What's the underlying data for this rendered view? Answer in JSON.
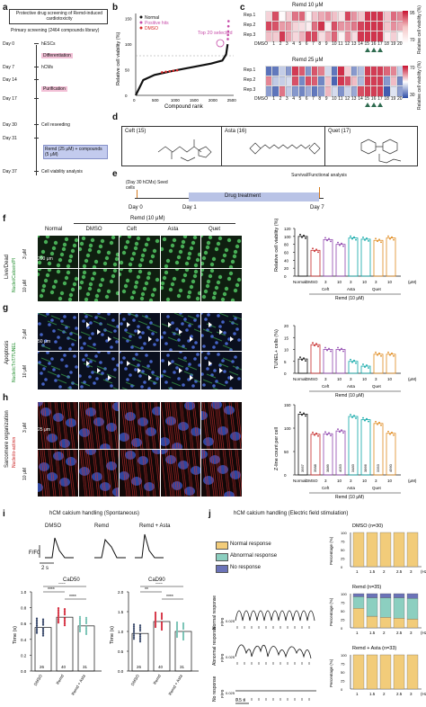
{
  "panels": {
    "a": {
      "label": "a",
      "title": "Protective drug screening of Remd-induced cardiotoxicity",
      "subtitle": "Primary screening (2464 compounds library)",
      "steps": [
        {
          "day": "Day 0",
          "text": "hESCs"
        },
        {
          "day": "",
          "text": "Differentiation"
        },
        {
          "day": "Day 7",
          "text": "hCMs"
        },
        {
          "day": "Day 14",
          "text": ""
        },
        {
          "day": "",
          "text": "Purification"
        },
        {
          "day": "Day 17",
          "text": ""
        },
        {
          "day": "Day 30",
          "text": "Cell reseeding"
        },
        {
          "day": "Day 31",
          "text": ""
        },
        {
          "day": "",
          "text": "Remd (25 μM) + compounds (5 μM)"
        },
        {
          "day": "Day 37",
          "text": "Cell viability analysis"
        }
      ]
    },
    "b": {
      "label": "b",
      "legend": [
        "Normal",
        "Positive hits",
        "DMSO"
      ],
      "annotation": "Top 20 selected",
      "xlabel": "Compound rank",
      "ylabel": "Relative cell viability (%)",
      "xticks": [
        "0",
        "500",
        "1000",
        "1500",
        "2000",
        "2500"
      ],
      "yticks": [
        "0",
        "50",
        "100",
        "150"
      ]
    },
    "c": {
      "label": "c",
      "heat1_title": "Remd 10 μM",
      "heat2_title": "Remd 25 μM",
      "rows": [
        "Rep.1",
        "Rep.2",
        "Rep.3"
      ],
      "cols": [
        "DMSO",
        "1",
        "2",
        "3",
        "4",
        "5",
        "6",
        "7",
        "8",
        "9",
        "10",
        "11",
        "12",
        "13",
        "14",
        "15",
        "16",
        "17",
        "18",
        "19",
        "20"
      ],
      "cb1": [
        "95",
        "70"
      ],
      "cb2": [
        "70",
        "30"
      ],
      "cb_label": "Relative cell viability (%)"
    },
    "d": {
      "label": "d",
      "compounds": [
        "Ceft (15)",
        "Asta (16)",
        "Quet (17)"
      ]
    },
    "e": {
      "label": "e",
      "seed": "(Day 30 hCMs) Seed cells",
      "treat": "Drug treatment",
      "analysis": "Survival/Functional analysis",
      "days": [
        "Day 0",
        "Day 1",
        "Day 7"
      ]
    },
    "f": {
      "label": "f",
      "side": "Live/Dead",
      "stain": "Nuclei/Calcein/PI",
      "scale": "200 μm",
      "col_headers": [
        "Normal",
        "DMSO",
        "Ceft",
        "Asta",
        "Quet"
      ],
      "remd": "Remd (10 μM)",
      "rows": [
        "3 μM",
        "10 μM"
      ],
      "ylabel": "Relative cell viability (%)",
      "yticks": [
        "0",
        "20",
        "40",
        "60",
        "80",
        "100",
        "120"
      ],
      "xgroup": "Remd (10 μM)"
    },
    "g": {
      "label": "g",
      "side": "Apoptosis",
      "stain": "Nuclei/cTnT/TUNEL",
      "scale": "50 μm",
      "rows": [
        "3 μM",
        "10 μM"
      ],
      "ylabel": "TUNEL+ cells (%)",
      "yticks": [
        "0",
        "5",
        "10",
        "15",
        "20"
      ],
      "xgroup": "Remd (10 μM)"
    },
    "h": {
      "label": "h",
      "side": "Sarcomere organization",
      "stain": "Nuclei/α-actinin",
      "scale": "25 μm",
      "rows": [
        "3 μM",
        "10 μM"
      ],
      "ylabel": "Z-line count per cell",
      "yticks": [
        "0",
        "50",
        "100",
        "150"
      ],
      "bar_n": [
        "3957",
        "3988",
        "3889",
        "4053",
        "3483",
        "3866",
        "3353",
        "4560"
      ],
      "xgroup": "Remd (10 μM)"
    },
    "i": {
      "label": "i",
      "title": "hCM calcium handling (Spontaneous)",
      "trace_labels": [
        "DMSO",
        "Remd",
        "Remd + Asta"
      ],
      "ylab": "F/F0",
      "scale": "2 s",
      "cad50": {
        "title": "CaD50",
        "ylabel": "Time (s)",
        "n": [
          "26",
          "40",
          "31"
        ],
        "cats": [
          "DMSO",
          "Remd",
          "Remd + Asta"
        ],
        "sig": [
          "****",
          "****",
          "****"
        ],
        "yticks": [
          "0.0",
          "0.2",
          "0.4",
          "0.6",
          "0.8",
          "1.0"
        ]
      },
      "cad90": {
        "title": "CaD90",
        "ylabel": "Time (s)",
        "n": [
          "26",
          "40",
          "31"
        ],
        "cats": [
          "DMSO",
          "Remd",
          "Remd + Asta"
        ],
        "sig": [
          "**",
          "****",
          "****"
        ],
        "yticks": [
          "0.0",
          "0.5",
          "1.0",
          "1.5",
          "2.0"
        ]
      }
    },
    "j": {
      "label": "j",
      "title": "hCM calcium handling (Electric field stimulation)",
      "legend": [
        "Normal response",
        "Abnormal response",
        "No response"
      ],
      "colors": {
        "normal": "#f2cc7a",
        "abnormal": "#8ccfc0",
        "none": "#6b73b8"
      },
      "traces": [
        "Normal response",
        "Abnormal response",
        "No response"
      ],
      "trace_ylab": "F/F0",
      "trace_tick": "0.025",
      "scale": "0.5 s",
      "charts": [
        {
          "title": "DMSO (n=30)",
          "ylabel": "Percentage (%)",
          "x": [
            "1",
            "1.5",
            "2",
            "2.5",
            "3"
          ],
          "xunit": "(Hz)",
          "normal": [
            100,
            100,
            100,
            100,
            100
          ],
          "abnormal": [
            0,
            0,
            0,
            0,
            0
          ],
          "none": [
            0,
            0,
            0,
            0,
            0
          ]
        },
        {
          "title": "Remd (n=35)",
          "ylabel": "Percentage (%)",
          "x": [
            "1",
            "1.5",
            "2",
            "2.5",
            "3"
          ],
          "xunit": "(Hz)",
          "normal": [
            57,
            34,
            31,
            28,
            26
          ],
          "abnormal": [
            34,
            54,
            57,
            60,
            60
          ],
          "none": [
            9,
            12,
            12,
            12,
            14
          ]
        },
        {
          "title": "Remd + Asta (n=33)",
          "ylabel": "Percentage (%)",
          "x": [
            "1",
            "1.5",
            "2",
            "2.5",
            "3"
          ],
          "xunit": "(Hz)",
          "normal": [
            100,
            100,
            100,
            100,
            100
          ],
          "abnormal": [
            0,
            0,
            0,
            0,
            0
          ],
          "none": [
            0,
            0,
            0,
            0,
            0
          ]
        }
      ],
      "yticks": [
        "0",
        "25",
        "50",
        "75",
        "100"
      ]
    }
  },
  "chart_data": [
    {
      "type": "scatter",
      "panel": "b",
      "xlabel": "Compound rank",
      "ylabel": "Relative cell viability (%)",
      "xlim": [
        0,
        2600
      ],
      "ylim": [
        0,
        160
      ],
      "series": [
        {
          "name": "Normal",
          "x": [
            0,
            200,
            500,
            1000,
            1500,
            2000,
            2300,
            2400,
            2440
          ],
          "y": [
            0,
            30,
            40,
            48,
            55,
            62,
            68,
            80,
            100
          ]
        },
        {
          "name": "Positive hits",
          "x": [
            2445,
            2450,
            2455,
            2460,
            2464
          ],
          "y": [
            110,
            118,
            125,
            135,
            145
          ]
        },
        {
          "name": "DMSO",
          "x": [
            700,
            800,
            900,
            1000,
            1100
          ],
          "y": [
            45,
            46,
            47,
            48,
            49
          ]
        }
      ]
    },
    {
      "type": "bar",
      "panel": "f",
      "ylabel": "Relative cell viability (%)",
      "categories": [
        "Normal",
        "DMSO",
        "Ceft 3",
        "Ceft 10",
        "Asta 3",
        "Asta 10",
        "Quet 3",
        "Quet 10"
      ],
      "values": [
        100,
        65,
        92,
        80,
        96,
        93,
        90,
        96
      ],
      "ylim": [
        0,
        120
      ]
    },
    {
      "type": "bar",
      "panel": "g",
      "ylabel": "TUNEL+ cells (%)",
      "categories": [
        "Normal",
        "DMSO",
        "Ceft 3",
        "Ceft 10",
        "Asta 3",
        "Asta 10",
        "Quet 3",
        "Quet 10"
      ],
      "values": [
        6,
        12,
        10,
        10,
        5,
        3,
        8,
        8
      ],
      "ylim": [
        0,
        20
      ]
    },
    {
      "type": "bar",
      "panel": "h",
      "ylabel": "Z-line count per cell",
      "categories": [
        "Normal",
        "DMSO",
        "Ceft 3",
        "Ceft 10",
        "Asta 3",
        "Asta 10",
        "Quet 3",
        "Quet 10"
      ],
      "values": [
        130,
        87,
        88,
        94,
        125,
        118,
        110,
        89
      ],
      "ylim": [
        0,
        150
      ]
    },
    {
      "type": "bar",
      "panel": "i",
      "title": "CaD50",
      "ylabel": "Time (s)",
      "categories": [
        "DMSO",
        "Remd",
        "Remd + Asta"
      ],
      "values": [
        0.55,
        0.68,
        0.57
      ],
      "ylim": [
        0,
        1.0
      ]
    },
    {
      "type": "bar",
      "panel": "i",
      "title": "CaD90",
      "ylabel": "Time (s)",
      "categories": [
        "DMSO",
        "Remd",
        "Remd + Asta"
      ],
      "values": [
        0.95,
        1.25,
        1.0
      ],
      "ylim": [
        0,
        2.0
      ]
    }
  ]
}
